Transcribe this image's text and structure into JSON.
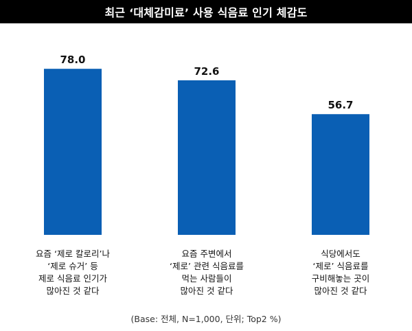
{
  "title": "최근 ‘대체감미료’ 사용 식음료 인기 체감도",
  "footnote": "(Base: 전체, N=1,000, 단위; Top2 %)",
  "colors": {
    "bar": "#0a5fb4",
    "title_bg": "#000000",
    "title_text": "#ffffff"
  },
  "chart_data": {
    "type": "bar",
    "title": "최근 ‘대체감미료’ 사용 식음료 인기 체감도",
    "categories": [
      [
        "요즘 ‘제로 칼로리’나",
        "‘제로 슈거’ 등",
        "제로 식음료 인기가",
        "많아진 것 같다"
      ],
      [
        "요즘 주변에서",
        "‘제로’ 관련 식음료를",
        "먹는 사람들이",
        "많아진 것 같다"
      ],
      [
        "식당에서도",
        "‘제로’ 식음료를",
        "구비해놓는 곳이",
        "많아진 것 같다"
      ]
    ],
    "values": [
      78.0,
      72.6,
      56.7
    ],
    "value_labels": [
      "78.0",
      "72.6",
      "56.7"
    ],
    "ylim": [
      0,
      80
    ],
    "grid": false,
    "legend": "none"
  }
}
